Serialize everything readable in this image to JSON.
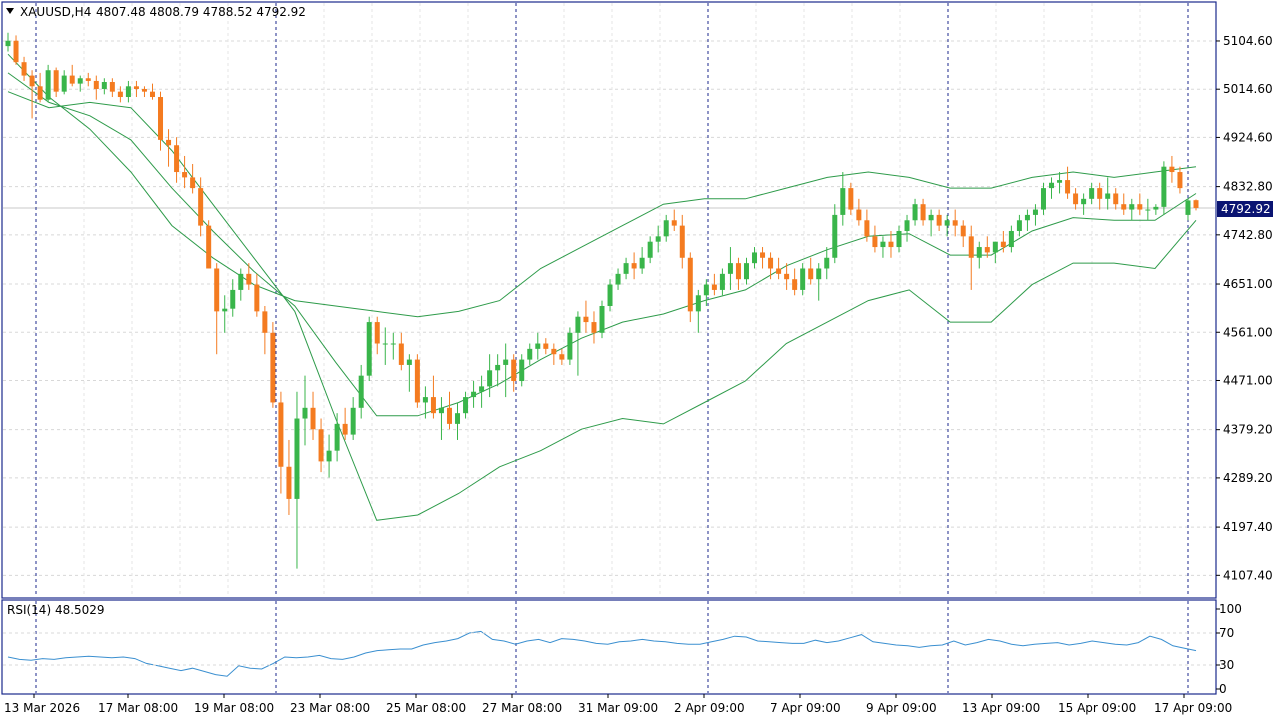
{
  "header": {
    "symbol_timeframe": "XAUUSD,H4",
    "ohlc": "4807.48 4808.79 4788.52 4792.92"
  },
  "current_price_label": "4792.92",
  "rsi": {
    "title": "RSI(14) 48.5029",
    "levels": [
      "100",
      "70",
      "30",
      "0"
    ]
  },
  "price_axis_labels": [
    "5104.60",
    "5014.60",
    "4924.60",
    "4832.80",
    "4742.80",
    "4651.00",
    "4561.00",
    "4471.00",
    "4379.20",
    "4289.20",
    "4197.40",
    "4107.40"
  ],
  "time_axis_labels": [
    "13 Mar 2026",
    "17 Mar 08:00",
    "19 Mar 08:00",
    "23 Mar 08:00",
    "25 Mar 08:00",
    "27 Mar 08:00",
    "31 Mar 09:00",
    "2 Apr 09:00",
    "7 Apr 09:00",
    "9 Apr 09:00",
    "13 Apr 09:00",
    "15 Apr 09:00",
    "17 Apr 09:00"
  ],
  "colors": {
    "bull": "#39b54a",
    "bear": "#f47b20",
    "band": "#2e9b4a",
    "rsi_line": "#3a8fd0",
    "frame": "#1c2a8c",
    "grid": "#d8d8d8"
  },
  "chart_data": {
    "type": "candlestick",
    "symbol": "XAUUSD",
    "timeframe": "H4",
    "ylim": [
      4080,
      5140
    ],
    "candles": [
      [
        5095,
        5120,
        5085,
        5105
      ],
      [
        5105,
        5115,
        5060,
        5065
      ],
      [
        5065,
        5075,
        5030,
        5040
      ],
      [
        5040,
        5050,
        4960,
        5020
      ],
      [
        5020,
        5045,
        4990,
        4995
      ],
      [
        4995,
        5060,
        4990,
        5050
      ],
      [
        5050,
        5055,
        5000,
        5010
      ],
      [
        5010,
        5050,
        5005,
        5040
      ],
      [
        5040,
        5060,
        5020,
        5025
      ],
      [
        5025,
        5040,
        5010,
        5035
      ],
      [
        5035,
        5045,
        5020,
        5030
      ],
      [
        5030,
        5040,
        4995,
        5015
      ],
      [
        5015,
        5035,
        5005,
        5028
      ],
      [
        5028,
        5035,
        5000,
        5010
      ],
      [
        5010,
        5020,
        4990,
        5000
      ],
      [
        5000,
        5030,
        4990,
        5020
      ],
      [
        5020,
        5030,
        5000,
        5015
      ],
      [
        5015,
        5020,
        5000,
        5010
      ],
      [
        5010,
        5025,
        4995,
        5000
      ],
      [
        5000,
        5010,
        4900,
        4920
      ],
      [
        4920,
        4940,
        4870,
        4910
      ],
      [
        4910,
        4925,
        4840,
        4860
      ],
      [
        4860,
        4890,
        4830,
        4850
      ],
      [
        4850,
        4875,
        4820,
        4830
      ],
      [
        4830,
        4850,
        4740,
        4760
      ],
      [
        4760,
        4770,
        4680,
        4680
      ],
      [
        4680,
        4690,
        4520,
        4600
      ],
      [
        4600,
        4630,
        4560,
        4605
      ],
      [
        4605,
        4660,
        4590,
        4640
      ],
      [
        4640,
        4680,
        4620,
        4670
      ],
      [
        4670,
        4690,
        4640,
        4650
      ],
      [
        4650,
        4670,
        4590,
        4600
      ],
      [
        4600,
        4610,
        4520,
        4560
      ],
      [
        4560,
        4580,
        4420,
        4430
      ],
      [
        4430,
        4450,
        4260,
        4310
      ],
      [
        4310,
        4360,
        4220,
        4250
      ],
      [
        4250,
        4450,
        4120,
        4400
      ],
      [
        4400,
        4480,
        4350,
        4420
      ],
      [
        4420,
        4450,
        4360,
        4380
      ],
      [
        4380,
        4400,
        4300,
        4320
      ],
      [
        4320,
        4370,
        4290,
        4340
      ],
      [
        4340,
        4410,
        4320,
        4390
      ],
      [
        4390,
        4420,
        4360,
        4370
      ],
      [
        4370,
        4440,
        4360,
        4420
      ],
      [
        4420,
        4500,
        4400,
        4480
      ],
      [
        4480,
        4590,
        4470,
        4580
      ],
      [
        4580,
        4590,
        4520,
        4540
      ],
      [
        4540,
        4570,
        4500,
        4540
      ],
      [
        4540,
        4560,
        4510,
        4540
      ],
      [
        4540,
        4560,
        4490,
        4500
      ],
      [
        4500,
        4520,
        4450,
        4510
      ],
      [
        4510,
        4520,
        4420,
        4430
      ],
      [
        4430,
        4460,
        4400,
        4440
      ],
      [
        4440,
        4480,
        4400,
        4410
      ],
      [
        4410,
        4440,
        4360,
        4420
      ],
      [
        4420,
        4450,
        4380,
        4390
      ],
      [
        4390,
        4430,
        4360,
        4410
      ],
      [
        4410,
        4450,
        4400,
        4440
      ],
      [
        4440,
        4470,
        4420,
        4450
      ],
      [
        4450,
        4480,
        4420,
        4460
      ],
      [
        4460,
        4520,
        4440,
        4490
      ],
      [
        4490,
        4520,
        4460,
        4500
      ],
      [
        4500,
        4540,
        4440,
        4510
      ],
      [
        4510,
        4520,
        4450,
        4470
      ],
      [
        4470,
        4520,
        4460,
        4510
      ],
      [
        4510,
        4540,
        4500,
        4530
      ],
      [
        4530,
        4560,
        4510,
        4540
      ],
      [
        4540,
        4550,
        4520,
        4530
      ],
      [
        4530,
        4540,
        4500,
        4520
      ],
      [
        4520,
        4530,
        4500,
        4510
      ],
      [
        4510,
        4570,
        4500,
        4560
      ],
      [
        4560,
        4600,
        4480,
        4590
      ],
      [
        4590,
        4620,
        4560,
        4580
      ],
      [
        4580,
        4600,
        4540,
        4560
      ],
      [
        4560,
        4620,
        4550,
        4610
      ],
      [
        4610,
        4660,
        4600,
        4650
      ],
      [
        4650,
        4680,
        4640,
        4670
      ],
      [
        4670,
        4700,
        4660,
        4690
      ],
      [
        4690,
        4710,
        4660,
        4680
      ],
      [
        4680,
        4720,
        4670,
        4700
      ],
      [
        4700,
        4740,
        4690,
        4730
      ],
      [
        4730,
        4760,
        4710,
        4740
      ],
      [
        4740,
        4780,
        4730,
        4770
      ],
      [
        4770,
        4790,
        4750,
        4760
      ],
      [
        4760,
        4780,
        4680,
        4700
      ],
      [
        4700,
        4710,
        4580,
        4600
      ],
      [
        4600,
        4640,
        4560,
        4630
      ],
      [
        4630,
        4660,
        4610,
        4650
      ],
      [
        4650,
        4670,
        4630,
        4640
      ],
      [
        4640,
        4680,
        4630,
        4670
      ],
      [
        4670,
        4720,
        4640,
        4690
      ],
      [
        4690,
        4700,
        4640,
        4660
      ],
      [
        4660,
        4700,
        4650,
        4690
      ],
      [
        4690,
        4720,
        4680,
        4710
      ],
      [
        4710,
        4720,
        4680,
        4700
      ],
      [
        4700,
        4710,
        4660,
        4680
      ],
      [
        4680,
        4700,
        4660,
        4670
      ],
      [
        4670,
        4690,
        4640,
        4660
      ],
      [
        4660,
        4680,
        4630,
        4640
      ],
      [
        4640,
        4690,
        4630,
        4680
      ],
      [
        4680,
        4700,
        4650,
        4660
      ],
      [
        4660,
        4690,
        4620,
        4680
      ],
      [
        4680,
        4720,
        4660,
        4700
      ],
      [
        4700,
        4800,
        4690,
        4780
      ],
      [
        4780,
        4860,
        4760,
        4830
      ],
      [
        4830,
        4840,
        4780,
        4790
      ],
      [
        4790,
        4810,
        4760,
        4770
      ],
      [
        4770,
        4790,
        4730,
        4740
      ],
      [
        4740,
        4760,
        4710,
        4720
      ],
      [
        4720,
        4740,
        4700,
        4730
      ],
      [
        4730,
        4750,
        4700,
        4720
      ],
      [
        4720,
        4760,
        4710,
        4750
      ],
      [
        4750,
        4780,
        4730,
        4770
      ],
      [
        4770,
        4810,
        4760,
        4800
      ],
      [
        4800,
        4810,
        4760,
        4770
      ],
      [
        4770,
        4790,
        4740,
        4780
      ],
      [
        4780,
        4790,
        4750,
        4760
      ],
      [
        4760,
        4780,
        4740,
        4770
      ],
      [
        4770,
        4790,
        4740,
        4760
      ],
      [
        4760,
        4770,
        4720,
        4740
      ],
      [
        4740,
        4760,
        4640,
        4700
      ],
      [
        4700,
        4730,
        4680,
        4720
      ],
      [
        4720,
        4740,
        4700,
        4710
      ],
      [
        4710,
        4730,
        4690,
        4730
      ],
      [
        4730,
        4750,
        4710,
        4720
      ],
      [
        4720,
        4760,
        4710,
        4750
      ],
      [
        4750,
        4780,
        4740,
        4770
      ],
      [
        4770,
        4790,
        4750,
        4780
      ],
      [
        4780,
        4800,
        4760,
        4790
      ],
      [
        4790,
        4840,
        4780,
        4830
      ],
      [
        4830,
        4850,
        4810,
        4840
      ],
      [
        4840,
        4860,
        4820,
        4845
      ],
      [
        4845,
        4870,
        4810,
        4820
      ],
      [
        4820,
        4830,
        4790,
        4800
      ],
      [
        4800,
        4820,
        4780,
        4810
      ],
      [
        4810,
        4840,
        4800,
        4830
      ],
      [
        4830,
        4840,
        4790,
        4810
      ],
      [
        4810,
        4850,
        4790,
        4820
      ],
      [
        4820,
        4830,
        4790,
        4800
      ],
      [
        4800,
        4820,
        4780,
        4790
      ],
      [
        4790,
        4810,
        4770,
        4800
      ],
      [
        4800,
        4820,
        4780,
        4790
      ],
      [
        4790,
        4810,
        4770,
        4790
      ],
      [
        4790,
        4800,
        4780,
        4795
      ],
      [
        4795,
        4880,
        4780,
        4870
      ],
      [
        4870,
        4890,
        4840,
        4860
      ],
      [
        4860,
        4870,
        4820,
        4830
      ],
      [
        4780,
        4810,
        4770,
        4807
      ],
      [
        4807.48,
        4808.79,
        4788.52,
        4792.92
      ]
    ],
    "bollinger_upper": [
      5080,
      5000,
      4940,
      4860,
      4760,
      4700,
      4650,
      4620,
      4610,
      4600,
      4590,
      4600,
      4620,
      4680,
      4720,
      4760,
      4800,
      4810,
      4810,
      4830,
      4850,
      4860,
      4850,
      4830,
      4830,
      4850,
      4860,
      4850,
      4860,
      4870
    ],
    "bollinger_lower": [
      5010,
      4980,
      4990,
      4980,
      4900,
      4800,
      4700,
      4600,
      4400,
      4210,
      4220,
      4260,
      4310,
      4340,
      4380,
      4400,
      4390,
      4430,
      4470,
      4540,
      4580,
      4620,
      4640,
      4580,
      4580,
      4650,
      4690,
      4690,
      4680,
      4770
    ],
    "rsi_values": [
      40,
      37,
      36,
      38,
      37,
      39,
      40,
      41,
      40,
      39,
      40,
      38,
      32,
      29,
      26,
      23,
      26,
      22,
      18,
      16,
      29,
      26,
      25,
      32,
      40,
      39,
      40,
      42,
      38,
      37,
      40,
      45,
      48,
      49,
      50,
      50,
      55,
      58,
      60,
      63,
      70,
      72,
      62,
      60,
      56,
      60,
      62,
      58,
      63,
      62,
      60,
      57,
      56,
      59,
      60,
      62,
      60,
      59,
      57,
      56,
      56,
      59,
      62,
      66,
      65,
      60,
      59,
      58,
      57,
      57,
      61,
      58,
      60,
      64,
      68,
      59,
      57,
      55,
      54,
      52,
      54,
      55,
      60,
      55,
      58,
      62,
      60,
      56,
      54,
      56,
      57,
      58,
      55,
      57,
      60,
      58,
      56,
      55,
      58,
      66,
      62,
      54,
      51,
      48
    ]
  }
}
